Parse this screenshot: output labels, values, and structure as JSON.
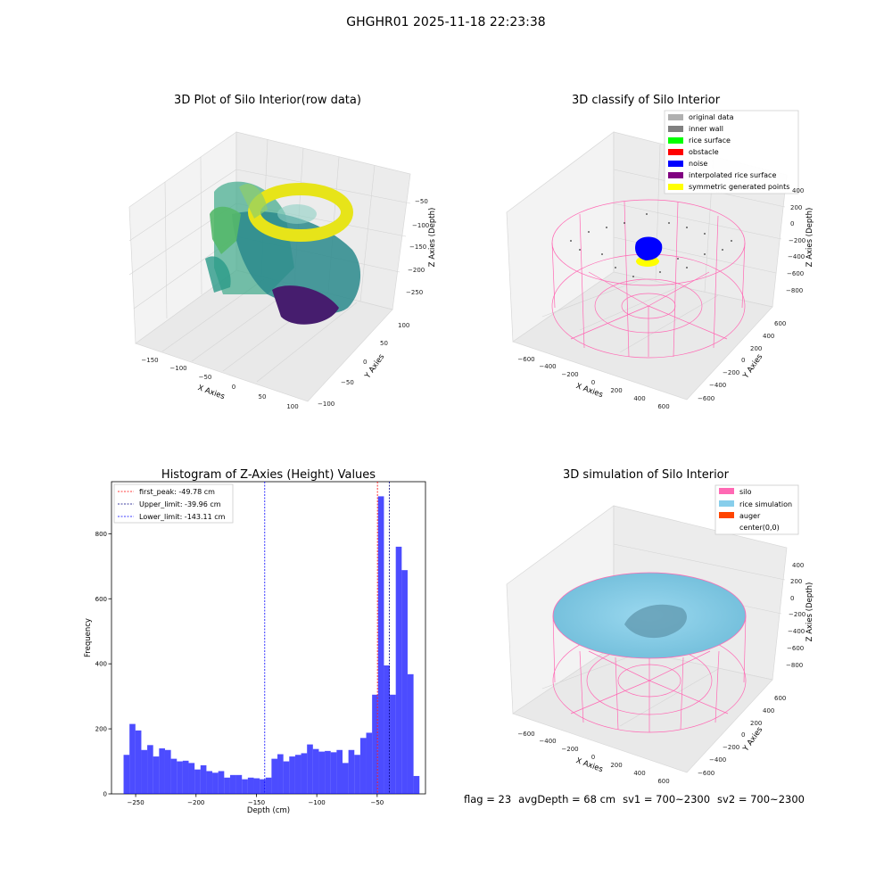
{
  "suptitle": "GHGHR01 2025-11-18 22:23:38",
  "footer": {
    "flag": "flag = 23",
    "avg_depth": "avgDepth = 68 cm",
    "sv1": "sv1 = 700~2300",
    "sv2": "sv2 = 700~2300"
  },
  "colors": {
    "hist_bar": "#0000ff",
    "silo_pink": "#ff69b4",
    "rice_sim": "#87ceeb",
    "auger": "#ff4500",
    "noise_blue": "#0000ff",
    "yellow": "#ffff00"
  },
  "panels": {
    "raw": {
      "title": "3D Plot of Silo Interior(row data)",
      "xlabel": "X Axies",
      "ylabel": "Y Axies",
      "zlabel": "Z Axies (Depth)",
      "xticks": [
        "−150",
        "−100",
        "−50",
        "0",
        "50",
        "100"
      ],
      "yticks": [
        "100",
        "50",
        "0",
        "−50",
        "−100"
      ],
      "zticks": [
        "−50",
        "−100",
        "−150",
        "−200",
        "−250"
      ]
    },
    "classify": {
      "title": "3D classify of Silo Interior",
      "xlabel": "X Axies",
      "ylabel": "Y Axies",
      "zlabel": "Z Axies (Depth)",
      "xticks": [
        "−600",
        "−400",
        "−200",
        "0",
        "200",
        "400",
        "600"
      ],
      "yticks": [
        "600",
        "400",
        "200",
        "0",
        "−200",
        "−400",
        "−600"
      ],
      "zticks": [
        "400",
        "200",
        "0",
        "−200",
        "−400",
        "−600",
        "−800"
      ],
      "legend": [
        {
          "label": "original data",
          "color": "#b0b0b0"
        },
        {
          "label": "inner wall",
          "color": "#808080"
        },
        {
          "label": "rice surface",
          "color": "#00ff00"
        },
        {
          "label": "obstacle",
          "color": "#ff0000"
        },
        {
          "label": "noise",
          "color": "#0000ff"
        },
        {
          "label": "interpolated rice surface",
          "color": "#800080"
        },
        {
          "label": "symmetric generated points",
          "color": "#ffff00"
        }
      ]
    },
    "simulation": {
      "title": "3D simulation of Silo Interior",
      "xlabel": "X Axies",
      "ylabel": "Y Axies",
      "zlabel": "Z Axies (Depth)",
      "xticks": [
        "−600",
        "−400",
        "−200",
        "0",
        "200",
        "400",
        "600"
      ],
      "yticks": [
        "600",
        "400",
        "200",
        "0",
        "−200",
        "−400",
        "−600"
      ],
      "zticks": [
        "400",
        "200",
        "0",
        "−200",
        "−400",
        "−600",
        "−800"
      ],
      "legend": [
        {
          "label": "silo",
          "color": "#ff69b4"
        },
        {
          "label": "rice simulation",
          "color": "#87ceeb"
        },
        {
          "label": "auger",
          "color": "#ff4500"
        },
        {
          "label": "center(0,0)",
          "color": ""
        }
      ]
    }
  },
  "chart_data": {
    "type": "bar",
    "title": "Histogram of Z-Axies (Height) Values",
    "xlabel": "Depth (cm)",
    "ylabel": "Frequency",
    "xlim": [
      -270,
      -10
    ],
    "ylim": [
      0,
      960
    ],
    "xticks": [
      -250,
      -200,
      -150,
      -100,
      -50
    ],
    "yticks": [
      0,
      200,
      400,
      600,
      800
    ],
    "bin_start": -260,
    "bin_width": 4.9,
    "values": [
      120,
      215,
      195,
      135,
      150,
      115,
      140,
      135,
      108,
      100,
      102,
      95,
      75,
      88,
      70,
      65,
      70,
      50,
      58,
      58,
      45,
      50,
      48,
      45,
      50,
      108,
      122,
      100,
      115,
      120,
      125,
      152,
      138,
      130,
      132,
      128,
      135,
      95,
      135,
      120,
      172,
      188,
      305,
      915,
      395,
      305,
      760,
      688,
      368,
      55
    ],
    "vlines": [
      {
        "label": "first_peak: -49.78 cm",
        "x": -49.78,
        "color": "#ff0000"
      },
      {
        "label": "Upper_limit: -39.96 cm",
        "x": -39.96,
        "color": "#000080"
      },
      {
        "label": "Lower_limit: -143.11 cm",
        "x": -143.11,
        "color": "#0000ff"
      }
    ]
  }
}
